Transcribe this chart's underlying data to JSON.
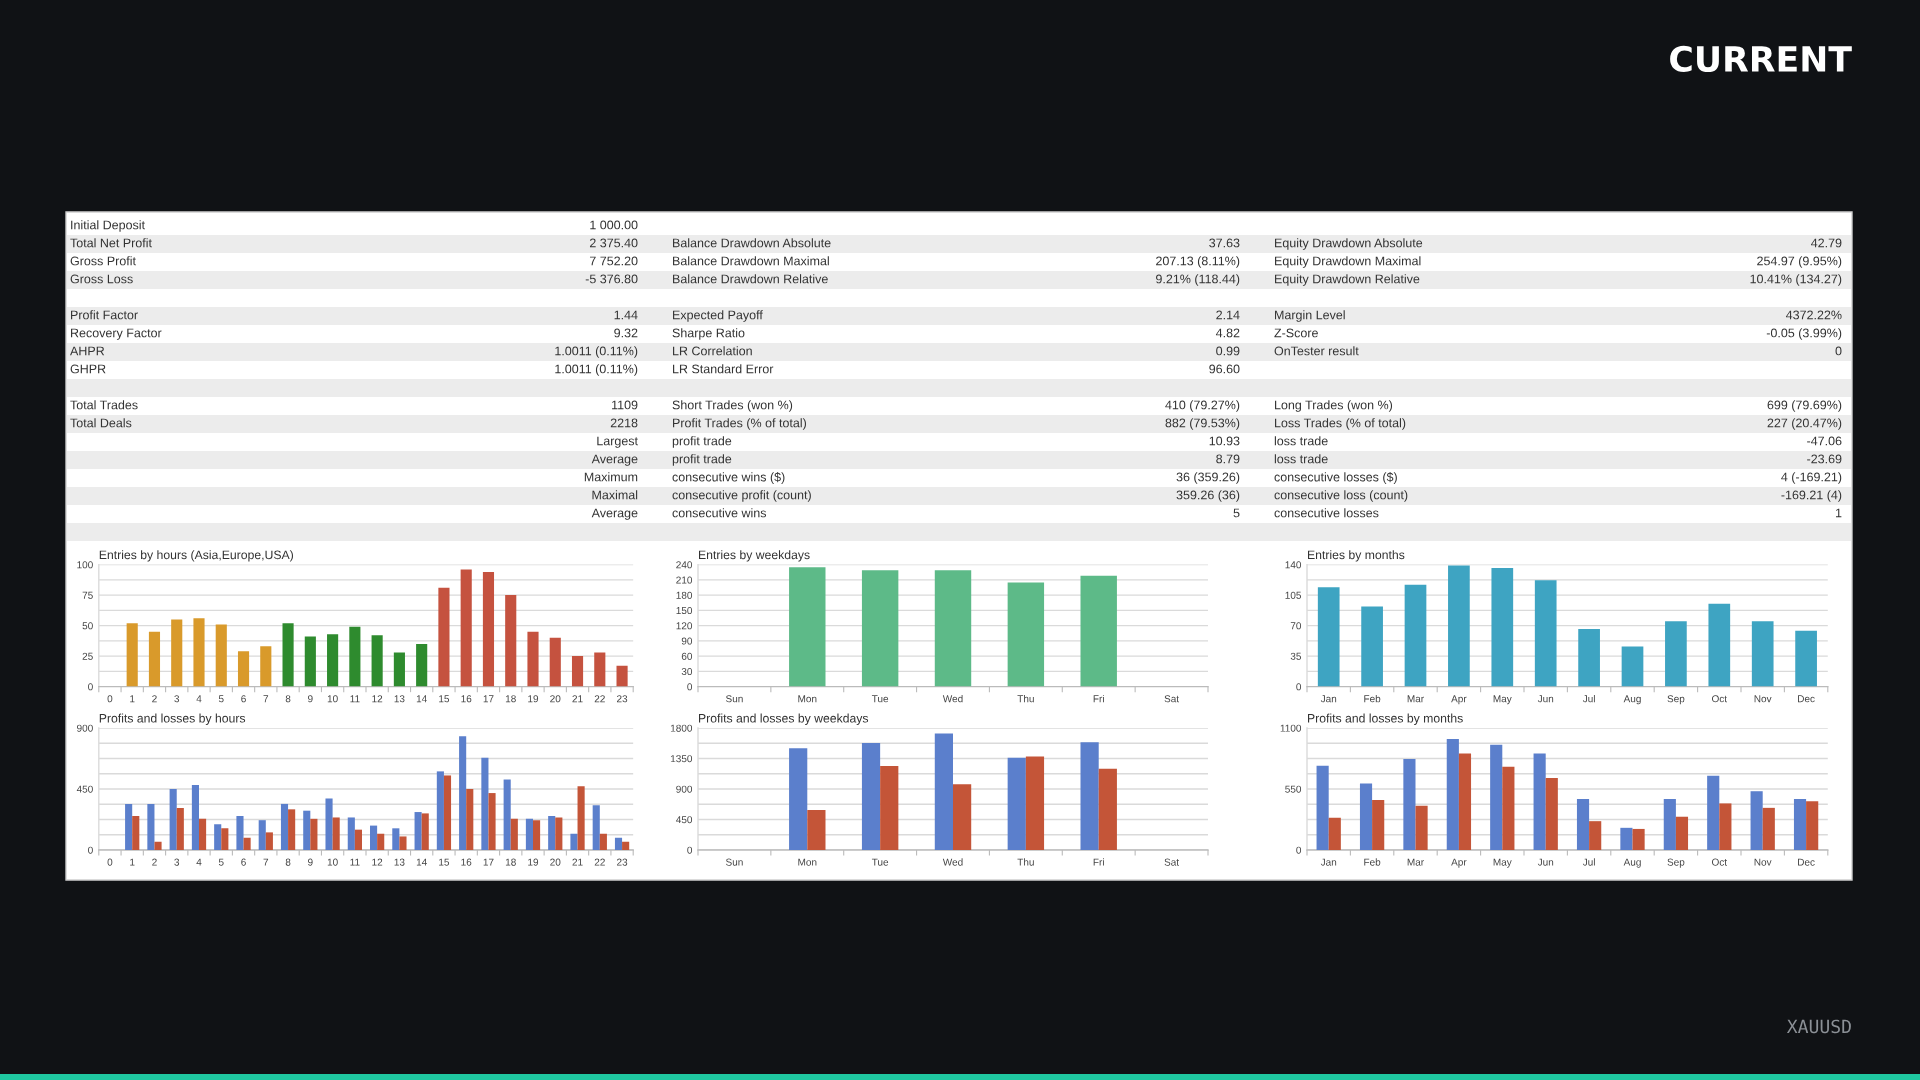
{
  "chart_data": [
    {
      "type": "other",
      "title": "CURRENT",
      "annotations": [
        "XAUUSD"
      ]
    },
    {
      "type": "other",
      "annotations": [
        "Initial Deposit",
        "1 000.00",
        "Total Net Profit",
        "2 375.40",
        "Balance Drawdown Absolute",
        "37.63",
        "Equity Drawdown Absolute",
        "42.79",
        "Gross Profit",
        "7 752.20",
        "Balance Drawdown Maximal",
        "207.13 (8.11%)",
        "Equity Drawdown Maximal",
        "254.97 (9.95%)",
        "Gross Loss",
        "-5 376.80",
        "Balance Drawdown Relative",
        "9.21% (118.44)",
        "Equity Drawdown Relative",
        "10.41% (134.27)",
        "Profit Factor",
        "1.44",
        "Expected Payoff",
        "2.14",
        "Margin Level",
        "4372.22%",
        "Recovery Factor",
        "9.32",
        "Sharpe Ratio",
        "4.82",
        "Z-Score",
        "-0.05 (3.99%)",
        "AHPR",
        "1.0011 (0.11%)",
        "LR Correlation",
        "0.99",
        "OnTester result",
        "0",
        "GHPR",
        "1.0011 (0.11%)",
        "LR Standard Error",
        "96.60",
        "Total Trades",
        "1109",
        "Short Trades (won %)",
        "410 (79.27%)",
        "Long Trades (won %)",
        "699 (79.69%)",
        "Total Deals",
        "2218",
        "Profit Trades (% of total)",
        "882 (79.53%)",
        "Loss Trades (% of total)",
        "227 (20.47%)",
        "Largest",
        "profit trade",
        "10.93",
        "loss trade",
        "-47.06",
        "Average",
        "profit trade",
        "8.79",
        "loss trade",
        "-23.69",
        "Maximum",
        "consecutive wins ($)",
        "36 (359.26)",
        "consecutive losses ($)",
        "4 (-169.21)",
        "Maximal",
        "consecutive profit (count)",
        "359.26 (36)",
        "consecutive loss (count)",
        "-169.21 (4)",
        "Average",
        "consecutive wins",
        "5",
        "consecutive losses",
        "1"
      ]
    },
    {
      "type": "bar",
      "title": "Entries by hours (Asia,Europe,USA)",
      "categories": [
        "0",
        "1",
        "2",
        "3",
        "4",
        "5",
        "6",
        "7",
        "8",
        "9",
        "10",
        "11",
        "12",
        "13",
        "14",
        "15",
        "16",
        "17",
        "18",
        "19",
        "20",
        "21",
        "22",
        "23"
      ],
      "values": [
        null,
        52,
        45,
        55,
        56,
        51,
        29,
        33,
        52,
        41,
        43,
        49,
        42,
        28,
        35,
        81,
        96,
        94,
        75,
        45,
        40,
        25,
        28,
        17
      ],
      "colors": [
        "#d99a2b",
        "#d99a2b",
        "#d99a2b",
        "#d99a2b",
        "#d99a2b",
        "#d99a2b",
        "#d99a2b",
        "#d99a2b",
        "#2e8b2e",
        "#2e8b2e",
        "#2e8b2e",
        "#2e8b2e",
        "#2e8b2e",
        "#2e8b2e",
        "#2e8b2e",
        "#c5523f",
        "#c5523f",
        "#c5523f",
        "#c5523f",
        "#c5523f",
        "#c5523f",
        "#c5523f",
        "#c5523f",
        "#c5523f"
      ],
      "ylim": [
        0,
        100
      ],
      "yticks": [
        0,
        {
          "value": 12.5,
          "label": null
        },
        25,
        {
          "value": 37.5,
          "label": null
        },
        50,
        {
          "value": 62.5,
          "label": null
        },
        75,
        {
          "value": 87.5,
          "label": null
        },
        100
      ],
      "grid": "y"
    },
    {
      "type": "bar",
      "title": "Entries by weekdays",
      "categories": [
        "Sun",
        "Mon",
        "Tue",
        "Wed",
        "Thu",
        "Fri",
        "Sat"
      ],
      "values": [
        null,
        235,
        229,
        229,
        205,
        218,
        null
      ],
      "color": "#5dba88",
      "ylim": [
        0,
        240
      ],
      "yticks": [
        0,
        30,
        60,
        90,
        120,
        150,
        180,
        210,
        240
      ],
      "grid": "y"
    },
    {
      "type": "bar",
      "title": "Entries by months",
      "categories": [
        "Jan",
        "Feb",
        "Mar",
        "Apr",
        "May",
        "Jun",
        "Jul",
        "Aug",
        "Sep",
        "Oct",
        "Nov",
        "Dec"
      ],
      "values": [
        114,
        92,
        117,
        139,
        136,
        122,
        66,
        46,
        75,
        95,
        75,
        64
      ],
      "color": "#3ea4c2",
      "ylim": [
        0,
        140
      ],
      "yticks": [
        0,
        {
          "value": 17.5,
          "label": null
        },
        35,
        {
          "value": 52.5,
          "label": null
        },
        70,
        {
          "value": 87.5,
          "label": null
        },
        105,
        {
          "value": 122.5,
          "label": null
        },
        140
      ],
      "grid": "y"
    },
    {
      "type": "bar",
      "title": "Profits and losses by hours",
      "categories": [
        "0",
        "1",
        "2",
        "3",
        "4",
        "5",
        "6",
        "7",
        "8",
        "9",
        "10",
        "11",
        "12",
        "13",
        "14",
        "15",
        "16",
        "17",
        "18",
        "19",
        "20",
        "21",
        "22",
        "23"
      ],
      "series": [
        {
          "color": "#5b7fcc",
          "values": [
            null,
            340,
            340,
            450,
            480,
            190,
            250,
            220,
            340,
            290,
            380,
            240,
            180,
            160,
            280,
            580,
            840,
            680,
            520,
            230,
            250,
            120,
            330,
            90
          ]
        },
        {
          "color": "#c45538",
          "values": [
            null,
            250,
            60,
            310,
            230,
            160,
            90,
            130,
            300,
            230,
            240,
            150,
            120,
            100,
            270,
            550,
            450,
            420,
            230,
            220,
            240,
            470,
            120,
            60
          ]
        }
      ],
      "ylim": [
        0,
        900
      ],
      "yticks": [
        0,
        {
          "value": 112.5,
          "label": null
        },
        {
          "value": 225,
          "label": null
        },
        {
          "value": 337.5,
          "label": null
        },
        450,
        {
          "value": 562.5,
          "label": null
        },
        {
          "value": 675,
          "label": null
        },
        {
          "value": 787.5,
          "label": null
        },
        900
      ],
      "grid": "y"
    },
    {
      "type": "bar",
      "title": "Profits and losses by weekdays",
      "categories": [
        "Sun",
        "Mon",
        "Tue",
        "Wed",
        "Thu",
        "Fri",
        "Sat"
      ],
      "series": [
        {
          "color": "#5b7fcc",
          "values": [
            null,
            1500,
            1580,
            1720,
            1360,
            1590,
            null
          ]
        },
        {
          "color": "#c45538",
          "values": [
            null,
            590,
            1240,
            970,
            1380,
            1200,
            null
          ]
        }
      ],
      "ylim": [
        0,
        1800
      ],
      "yticks": [
        0,
        {
          "value": 225,
          "label": null
        },
        450,
        {
          "value": 675,
          "label": null
        },
        900,
        {
          "value": 1125,
          "label": null
        },
        1350,
        {
          "value": 1575,
          "label": null
        },
        1800
      ],
      "grid": "y"
    },
    {
      "type": "bar",
      "title": "Profits and losses by months",
      "categories": [
        "Jan",
        "Feb",
        "Mar",
        "Apr",
        "May",
        "Jun",
        "Jul",
        "Aug",
        "Sep",
        "Oct",
        "Nov",
        "Dec"
      ],
      "series": [
        {
          "color": "#5b7fcc",
          "values": [
            760,
            600,
            820,
            1000,
            950,
            870,
            460,
            200,
            460,
            670,
            530,
            460
          ]
        },
        {
          "color": "#c45538",
          "values": [
            290,
            450,
            400,
            870,
            750,
            650,
            260,
            190,
            300,
            420,
            380,
            440
          ]
        }
      ],
      "ylim": [
        0,
        1100
      ],
      "yticks": [
        0,
        {
          "value": 137.5,
          "label": null
        },
        {
          "value": 275,
          "label": null
        },
        {
          "value": 412.5,
          "label": null
        },
        550,
        {
          "value": 687.5,
          "label": null
        },
        {
          "value": 825,
          "label": null
        },
        {
          "value": 962.5,
          "label": null
        },
        1100
      ],
      "grid": "y"
    }
  ]
}
